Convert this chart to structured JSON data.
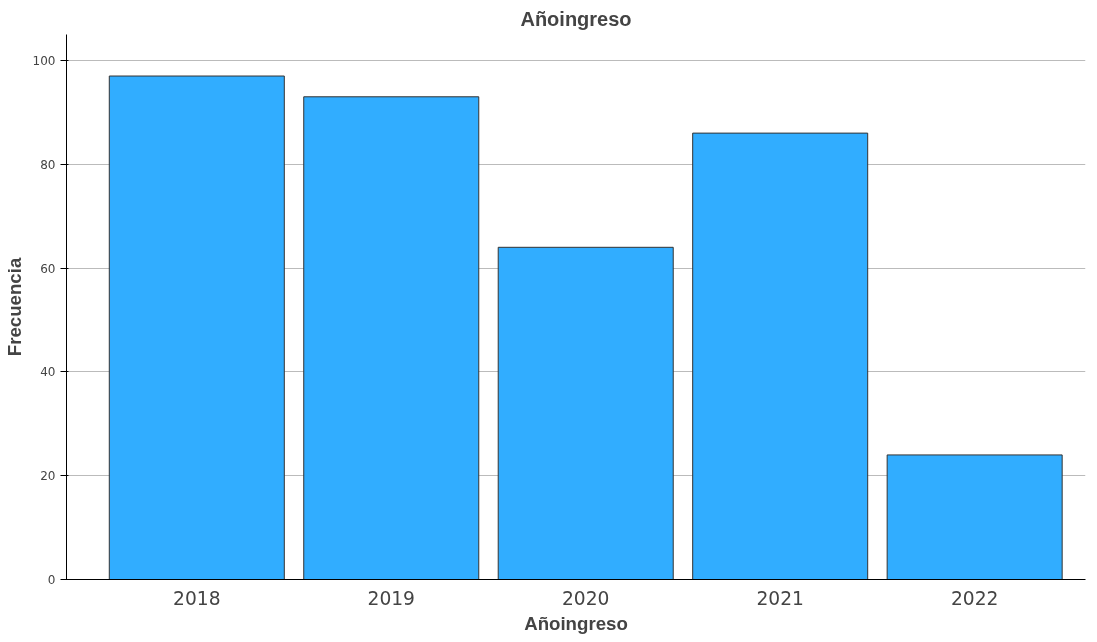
{
  "chart_data": {
    "type": "bar",
    "title": "Añoingreso",
    "xlabel": "Añoingreso",
    "ylabel": "Frecuencia",
    "categories": [
      "2018",
      "2019",
      "2020",
      "2021",
      "2022"
    ],
    "values": [
      97,
      93,
      64,
      86,
      24
    ],
    "color": "#31adff",
    "ylim": [
      0,
      105
    ],
    "yticks": [
      0,
      20,
      40,
      60,
      80,
      100
    ],
    "grid": "y"
  }
}
